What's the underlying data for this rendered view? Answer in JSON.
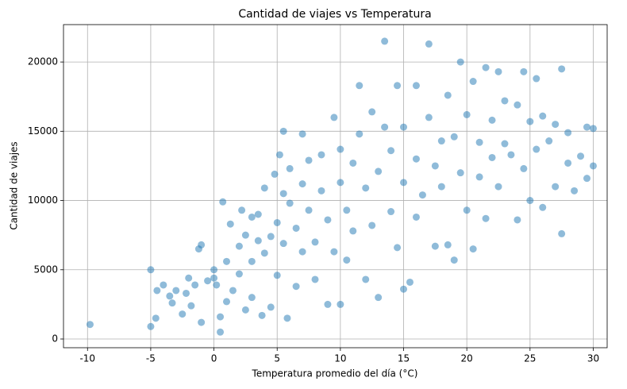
{
  "chart_data": {
    "type": "scatter",
    "title": "Cantidad de viajes vs Temperatura",
    "xlabel": "Temperatura promedio del día (°C)",
    "ylabel": "Cantidad de viajes",
    "color": "#1f77b4",
    "alpha": 0.5,
    "grid": true,
    "xlim": [
      -11.9,
      31.1
    ],
    "ylim": [
      -630,
      22700
    ],
    "xticks": [
      -10,
      -5,
      0,
      5,
      10,
      15,
      20,
      25,
      30
    ],
    "yticks": [
      0,
      5000,
      10000,
      15000,
      20000
    ],
    "x": [
      -9.8,
      -5,
      -5,
      -4.6,
      -4.5,
      -4,
      -3.5,
      -3.3,
      -3,
      -2.5,
      -2.2,
      -2,
      -1.8,
      -1.5,
      -1.2,
      -1.0,
      -1.0,
      -0.5,
      0,
      0,
      0.2,
      0.5,
      0.5,
      0.7,
      1,
      1,
      1.3,
      1.5,
      2,
      2,
      2.2,
      2.5,
      2.5,
      3,
      3,
      3,
      3.5,
      3.5,
      3.8,
      4,
      4,
      4.5,
      4.5,
      4.8,
      5,
      5,
      5.2,
      5.5,
      5.5,
      5.5,
      5.8,
      6,
      6,
      6.5,
      6.5,
      7,
      7,
      7,
      7.5,
      7.5,
      8,
      8,
      8.5,
      8.5,
      9,
      9,
      9.5,
      9.5,
      10,
      10,
      10,
      10.5,
      10.5,
      11,
      11,
      11.5,
      11.5,
      12,
      12,
      12.5,
      12.5,
      13,
      13,
      13.5,
      13.5,
      14,
      14,
      14.5,
      14.5,
      15,
      15,
      15,
      15.5,
      16,
      16,
      16,
      16.5,
      17,
      17,
      17.5,
      17.5,
      18,
      18,
      18.5,
      18.5,
      19,
      19,
      19.5,
      19.5,
      20,
      20,
      20.5,
      20.5,
      21,
      21,
      21.5,
      21.5,
      22,
      22,
      22.5,
      22.5,
      23,
      23,
      23.5,
      24,
      24,
      24.5,
      24.5,
      25,
      25,
      25.5,
      25.5,
      26,
      26,
      26.5,
      27,
      27,
      27.5,
      27.5,
      28,
      28,
      28.5,
      29,
      29.5,
      29.5,
      30,
      30
    ],
    "values": [
      1050,
      5000,
      900,
      1500,
      3500,
      3900,
      3100,
      2600,
      3500,
      1800,
      3300,
      4400,
      2400,
      3900,
      6500,
      6800,
      1200,
      4200,
      5000,
      4400,
      3900,
      500,
      1600,
      9900,
      2700,
      5600,
      8300,
      3500,
      6700,
      4700,
      9300,
      7500,
      2100,
      8800,
      5600,
      3000,
      9000,
      7100,
      1700,
      10900,
      6200,
      2300,
      7400,
      11900,
      8400,
      4600,
      13300,
      10500,
      6900,
      15000,
      1500,
      9800,
      12300,
      3800,
      8000,
      14800,
      11200,
      6300,
      9300,
      12900,
      7000,
      4300,
      13300,
      10700,
      8600,
      2500,
      16000,
      6300,
      11300,
      13700,
      2500,
      9300,
      5700,
      12700,
      7800,
      18300,
      14800,
      10900,
      4300,
      16400,
      8200,
      12100,
      3000,
      21500,
      15300,
      9200,
      13600,
      18300,
      6600,
      11300,
      15300,
      3600,
      4100,
      18300,
      13000,
      8800,
      10400,
      21300,
      16000,
      6700,
      12500,
      14300,
      11000,
      17600,
      6800,
      14600,
      5700,
      20000,
      12000,
      16200,
      9300,
      18600,
      6500,
      14200,
      11700,
      19600,
      8700,
      15800,
      13100,
      19300,
      11000,
      17200,
      14100,
      13300,
      16900,
      8600,
      19300,
      12300,
      15700,
      10000,
      18800,
      13700,
      16100,
      9500,
      14300,
      15500,
      11000,
      19500,
      7600,
      12700,
      14900,
      10700,
      13200,
      15300,
      11600,
      15200,
      12500
    ]
  }
}
